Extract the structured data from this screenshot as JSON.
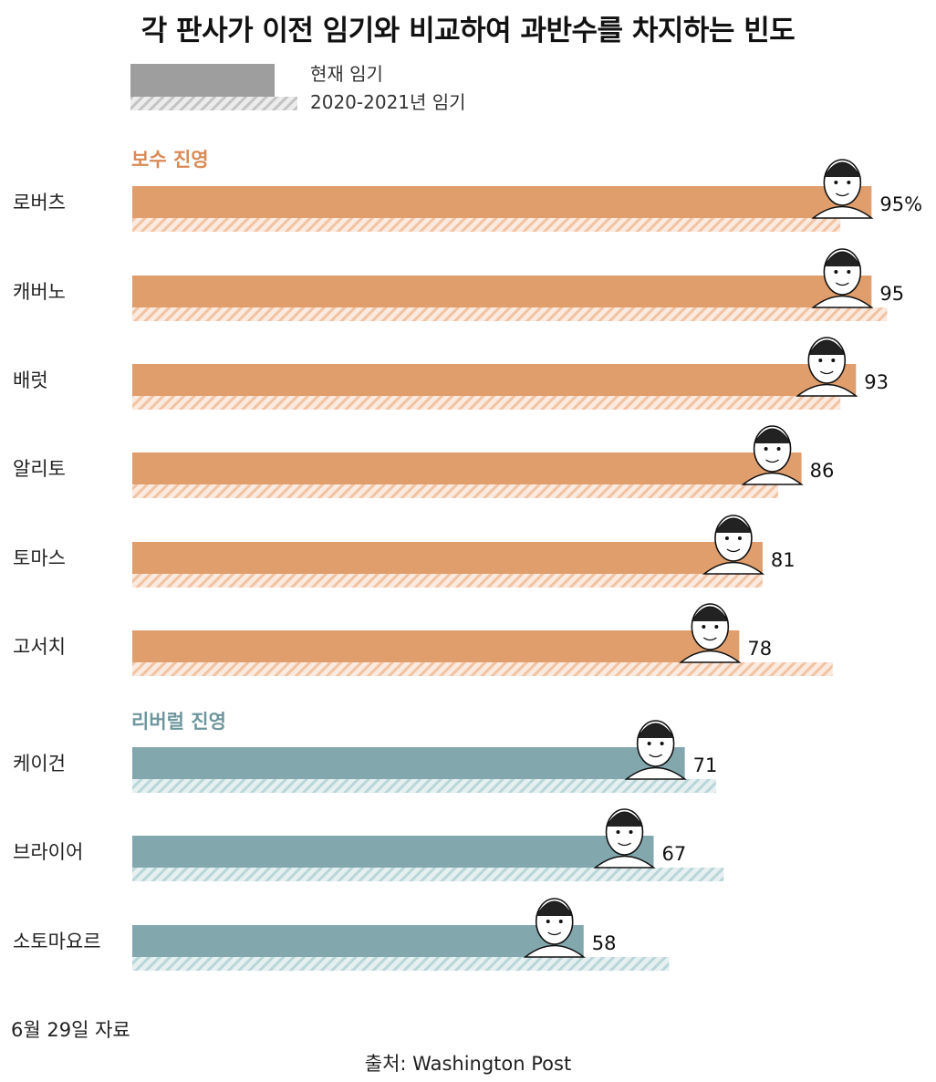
{
  "title": "각 판사가 이전 임기와 비교하여 과반수를 차지하는 빈도",
  "legend": {
    "current": "현재 임기",
    "previous": "2020-2021년 임기"
  },
  "groups": [
    {
      "key": "conservative",
      "label": "보수 진영",
      "color": "#e09e6c",
      "hatch": "#f1c3a2"
    },
    {
      "key": "liberal",
      "label": "리버럴 진영",
      "color": "#82a8ae",
      "hatch": "#b9d6d9"
    }
  ],
  "chart_data": {
    "type": "bar",
    "orientation": "horizontal",
    "title": "각 판사가 이전 임기와 비교하여 과반수를 차지하는 빈도",
    "unit": "%",
    "xlim": [
      0,
      100
    ],
    "categories": [
      "로버츠",
      "캐버노",
      "배럿",
      "알리토",
      "토마스",
      "고서치",
      "케이건",
      "브라이어",
      "소토마요르"
    ],
    "category_groups": [
      "conservative",
      "conservative",
      "conservative",
      "conservative",
      "conservative",
      "conservative",
      "liberal",
      "liberal",
      "liberal"
    ],
    "series": [
      {
        "name": "현재 임기",
        "values": [
          95,
          95,
          93,
          86,
          81,
          78,
          71,
          67,
          58
        ]
      },
      {
        "name": "2020-2021년 임기",
        "values": [
          91,
          97,
          91,
          83,
          81,
          90,
          75,
          76,
          69
        ]
      }
    ],
    "value_labels": [
      "95%",
      "95",
      "93",
      "86",
      "81",
      "78",
      "71",
      "67",
      "58"
    ]
  },
  "footnote": "6월 29일 자료",
  "source": "출처: Washington Post"
}
